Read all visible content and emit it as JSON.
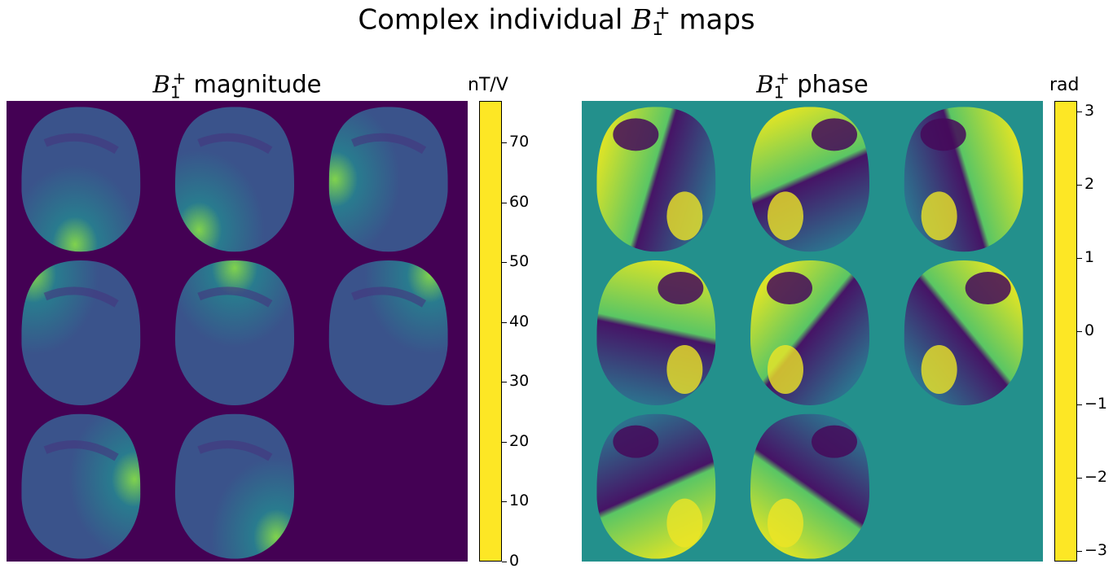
{
  "figure": {
    "title_prefix": "Complex individual ",
    "title_symbol": "B",
    "title_sub": "1",
    "title_sup": "+",
    "title_suffix": " maps"
  },
  "colors": {
    "viridis": [
      "#440154",
      "#482878",
      "#3e4989",
      "#31688e",
      "#26828e",
      "#1f9e89",
      "#35b779",
      "#6ece58",
      "#b5de2b",
      "#fde725"
    ]
  },
  "chart_data": [
    {
      "type": "heatmap",
      "title_symbol": "B",
      "title_sub": "1",
      "title_sup": "+",
      "title_text": " magnitude",
      "colorbar_label": "nT/V",
      "vmin": 0,
      "vmax": 77,
      "ticks": [
        "0",
        "10",
        "20",
        "30",
        "40",
        "50",
        "60",
        "70"
      ],
      "tick_values": [
        0,
        10,
        20,
        30,
        40,
        50,
        60,
        70
      ],
      "n_channels_shown": 8,
      "background_value": 0,
      "grid_layout": "3x3",
      "colormap": "viridis"
    },
    {
      "type": "heatmap",
      "title_symbol": "B",
      "title_sub": "1",
      "title_sup": "+",
      "title_text": " phase",
      "colorbar_label": "rad",
      "vmin": -3.1416,
      "vmax": 3.1416,
      "ticks": [
        "−3",
        "−2",
        "−1",
        "0",
        "1",
        "2",
        "3"
      ],
      "tick_values": [
        -3,
        -2,
        -1,
        0,
        1,
        2,
        3
      ],
      "n_channels_shown": 8,
      "background_value": 0,
      "grid_layout": "3x3",
      "colormap": "viridis"
    }
  ]
}
